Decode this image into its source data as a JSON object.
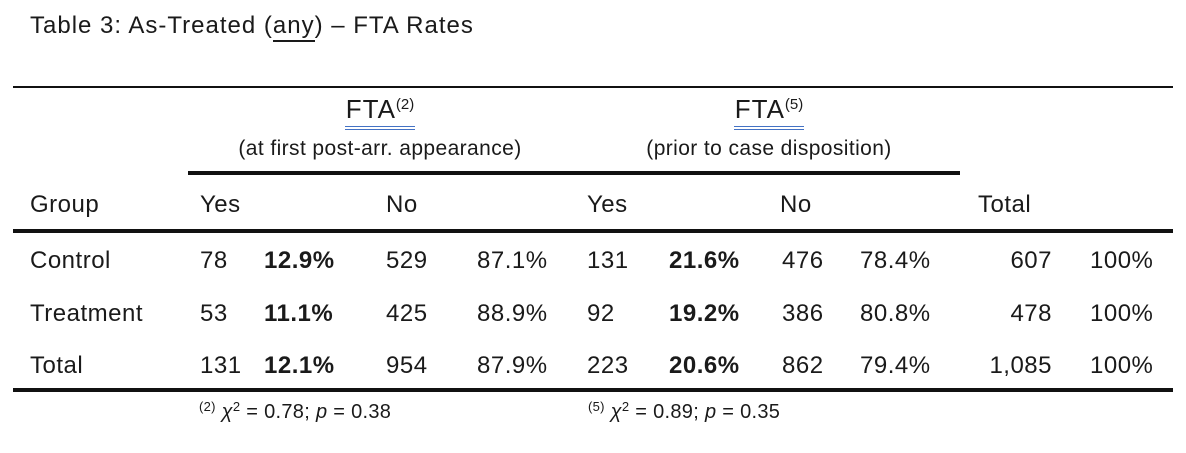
{
  "title": {
    "prefix": "Table 3: As-Treated (",
    "underlined": "any",
    "suffix": ") – FTA Rates"
  },
  "colors": {
    "text": "#1a1a1a",
    "rule": "#111111",
    "fta_double_underline": "#4472c4"
  },
  "groups": [
    {
      "label": "FTA",
      "sup": "(2)",
      "subtitle": "(at first post-arr. appearance)"
    },
    {
      "label": "FTA",
      "sup": "(5)",
      "subtitle": "(prior to case disposition)"
    }
  ],
  "columns": {
    "group": "Group",
    "yes": "Yes",
    "no": "No",
    "total": "Total"
  },
  "rows": [
    {
      "group": "Control",
      "y2c": "78",
      "y2p": "12.9%",
      "n2c": "529",
      "n2p": "87.1%",
      "y5c": "131",
      "y5p": "21.6%",
      "n5c": "476",
      "n5p": "78.4%",
      "totc": "607",
      "totp": "100%"
    },
    {
      "group": "Treatment",
      "y2c": "53",
      "y2p": "11.1%",
      "n2c": "425",
      "n2p": "88.9%",
      "y5c": "92",
      "y5p": "19.2%",
      "n5c": "386",
      "n5p": "80.8%",
      "totc": "478",
      "totp": "100%"
    },
    {
      "group": "Total",
      "y2c": "131",
      "y2p": "12.1%",
      "n2c": "954",
      "n2p": "87.9%",
      "y5c": "223",
      "y5p": "20.6%",
      "n5c": "862",
      "n5p": "79.4%",
      "totc": "1,085",
      "totp": "100%"
    }
  ],
  "footnotes": [
    {
      "sup": "(2)",
      "chi": "χ",
      "chi_exp": "2",
      "mid": " = 0.78; ",
      "p": "p",
      "tail": " = 0.38"
    },
    {
      "sup": "(5)",
      "chi": "χ",
      "chi_exp": "2",
      "mid": " = 0.89; ",
      "p": "p",
      "tail": " = 0.35"
    }
  ]
}
